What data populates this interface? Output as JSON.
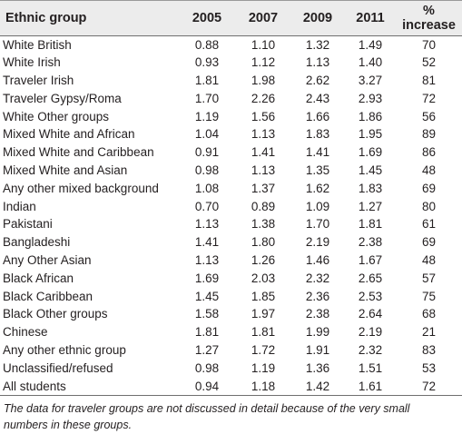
{
  "table": {
    "headers": [
      "Ethnic group",
      "2005",
      "2007",
      "2009",
      "2011",
      "% increase"
    ],
    "rows": [
      [
        "White British",
        "0.88",
        "1.10",
        "1.32",
        "1.49",
        "70"
      ],
      [
        "White Irish",
        "0.93",
        "1.12",
        "1.13",
        "1.40",
        "52"
      ],
      [
        "Traveler Irish",
        "1.81",
        "1.98",
        "2.62",
        "3.27",
        "81"
      ],
      [
        "Traveler Gypsy/Roma",
        "1.70",
        "2.26",
        "2.43",
        "2.93",
        "72"
      ],
      [
        "White Other groups",
        "1.19",
        "1.56",
        "1.66",
        "1.86",
        "56"
      ],
      [
        "Mixed White and African",
        "1.04",
        "1.13",
        "1.83",
        "1.95",
        "89"
      ],
      [
        "Mixed White and Caribbean",
        "0.91",
        "1.41",
        "1.41",
        "1.69",
        "86"
      ],
      [
        "Mixed White and Asian",
        "0.98",
        "1.13",
        "1.35",
        "1.45",
        "48"
      ],
      [
        "Any other mixed background",
        "1.08",
        "1.37",
        "1.62",
        "1.83",
        "69"
      ],
      [
        "Indian",
        "0.70",
        "0.89",
        "1.09",
        "1.27",
        "80"
      ],
      [
        "Pakistani",
        "1.13",
        "1.38",
        "1.70",
        "1.81",
        "61"
      ],
      [
        "Bangladeshi",
        "1.41",
        "1.80",
        "2.19",
        "2.38",
        "69"
      ],
      [
        "Any Other Asian",
        "1.13",
        "1.26",
        "1.46",
        "1.67",
        "48"
      ],
      [
        "Black African",
        "1.69",
        "2.03",
        "2.32",
        "2.65",
        "57"
      ],
      [
        "Black Caribbean",
        "1.45",
        "1.85",
        "2.36",
        "2.53",
        "75"
      ],
      [
        "Black Other groups",
        "1.58",
        "1.97",
        "2.38",
        "2.64",
        "68"
      ],
      [
        "Chinese",
        "1.81",
        "1.81",
        "1.99",
        "2.19",
        "21"
      ],
      [
        "Any other ethnic group",
        "1.27",
        "1.72",
        "1.91",
        "2.32",
        "83"
      ],
      [
        "Unclassified/refused",
        "0.98",
        "1.19",
        "1.36",
        "1.51",
        "53"
      ],
      [
        "All students",
        "0.94",
        "1.18",
        "1.42",
        "1.61",
        "72"
      ]
    ]
  },
  "footnote": "The data for traveler groups are not discussed in detail because of the very small numbers in these groups."
}
